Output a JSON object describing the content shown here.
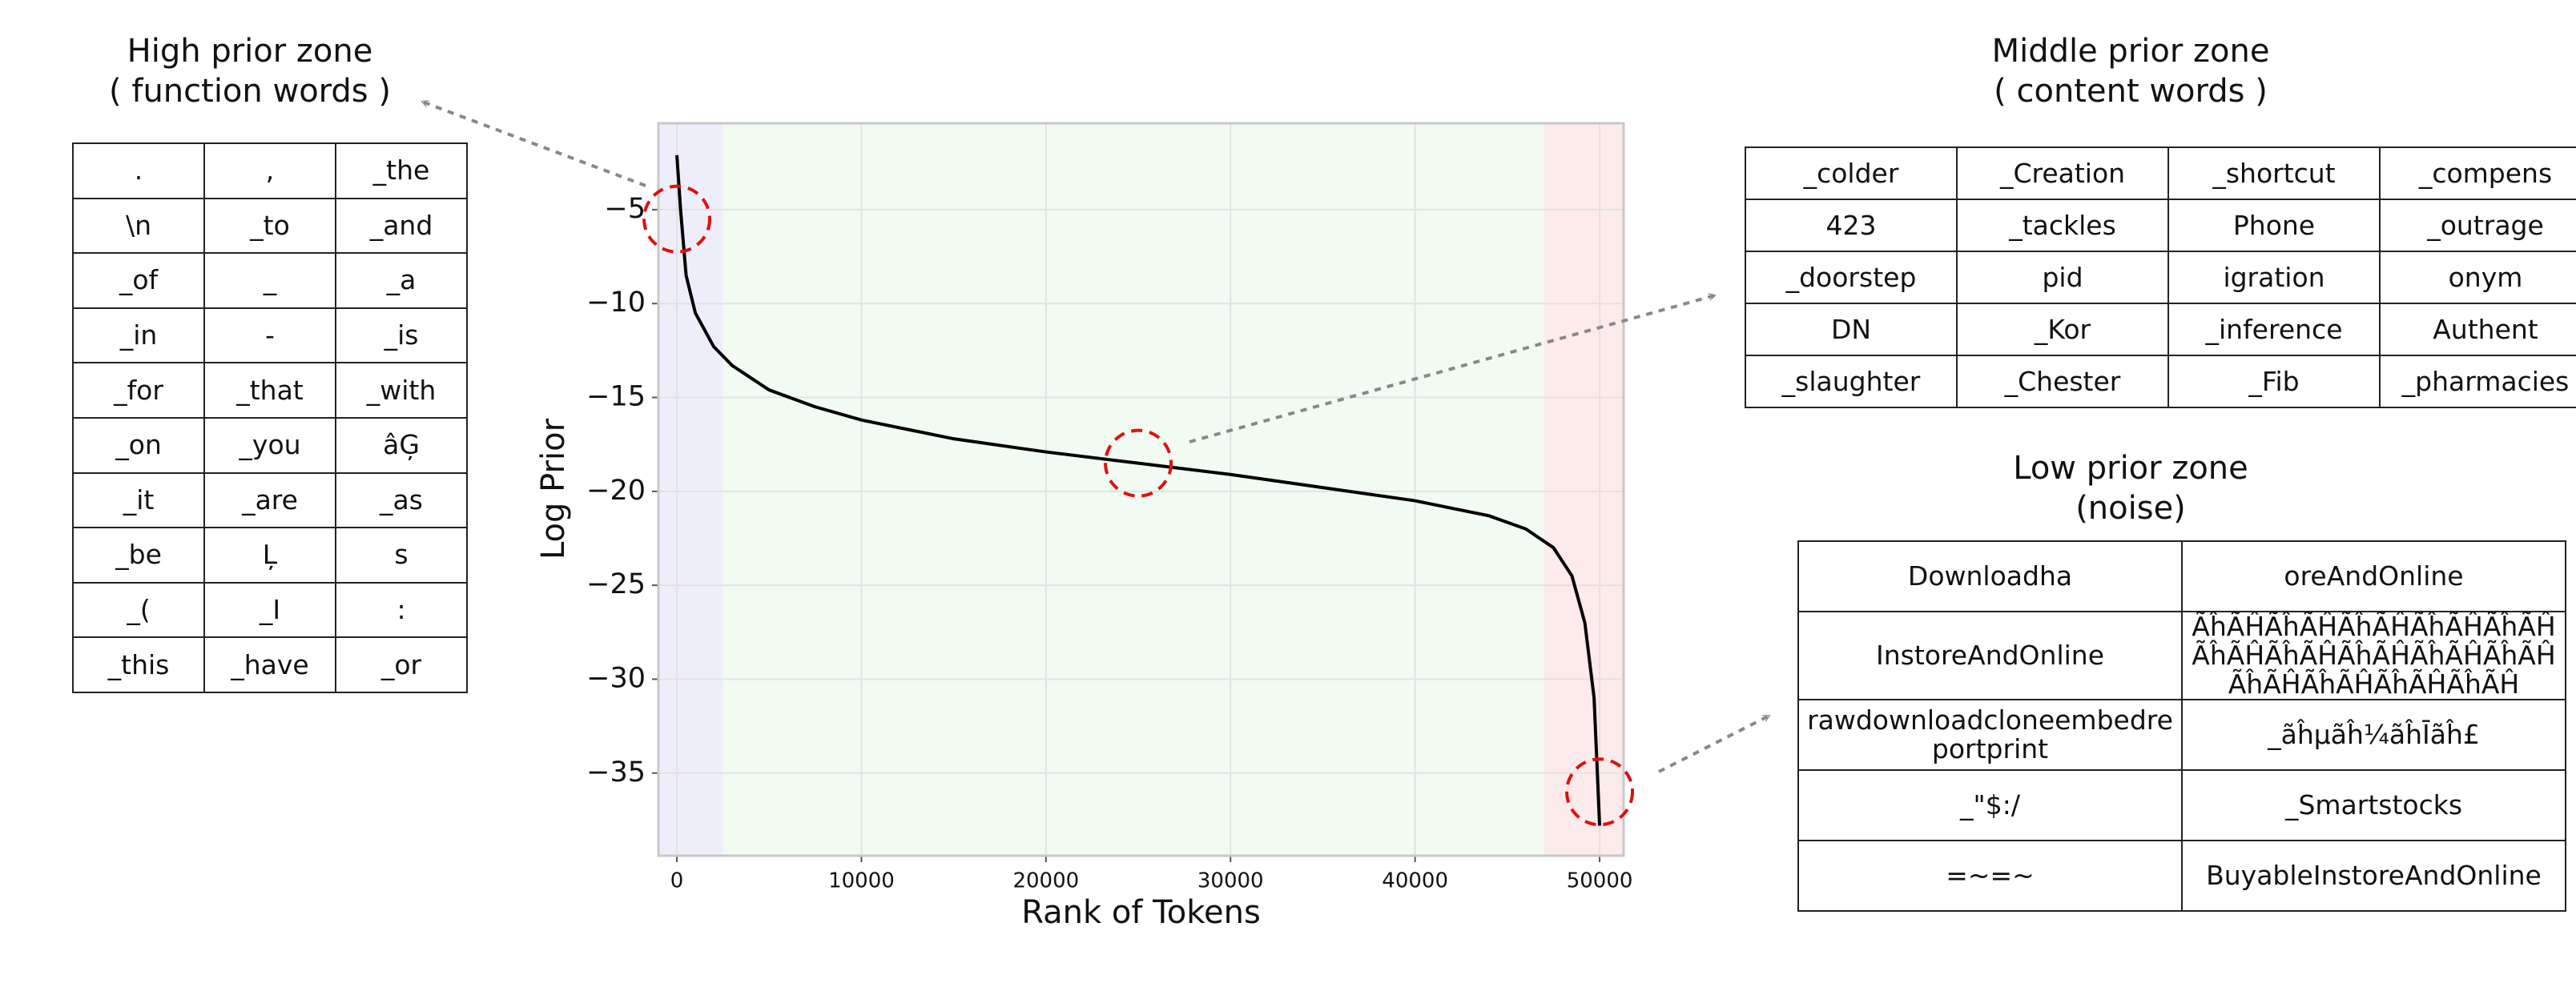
{
  "chart_data": {
    "type": "line",
    "xlabel": "Rank of Tokens",
    "ylabel": "Log Prior",
    "x": [
      0,
      200,
      500,
      1000,
      2000,
      3000,
      5000,
      7500,
      10000,
      15000,
      20000,
      25000,
      30000,
      35000,
      40000,
      44000,
      46000,
      47500,
      48500,
      49200,
      49700,
      50000
    ],
    "series": [
      {
        "color": "#000000",
        "values": [
          -2.1,
          -5,
          -8.5,
          -10.5,
          -12.3,
          -13.3,
          -14.6,
          -15.5,
          -16.2,
          -17.2,
          -17.9,
          -18.5,
          -19.1,
          -19.8,
          -20.5,
          -21.3,
          -22.0,
          -23.0,
          -24.5,
          -27,
          -31,
          -37.8
        ]
      }
    ],
    "xlim": [
      -1000,
      51300
    ],
    "ylim": [
      -39.4,
      -0.4
    ],
    "xticks": [
      0,
      10000,
      20000,
      30000,
      40000,
      50000
    ],
    "yticks": [
      {
        "value": -5,
        "label": "−5"
      },
      {
        "value": -10,
        "label": "−10"
      },
      {
        "value": -15,
        "label": "−15"
      },
      {
        "value": -20,
        "label": "−20"
      },
      {
        "value": -25,
        "label": "−25"
      },
      {
        "value": -30,
        "label": "−30"
      },
      {
        "value": -35,
        "label": "−35"
      }
    ],
    "grid": true,
    "zones": [
      {
        "xstart": -1000,
        "xend": 2500,
        "color": "#eeeefb"
      },
      {
        "xstart": 2500,
        "xend": 47000,
        "color": "#f1fbf1"
      },
      {
        "xstart": 47000,
        "xend": 51300,
        "color": "#fdeaea"
      }
    ],
    "highlights": [
      {
        "x": 0,
        "y": -5.5
      },
      {
        "x": 25000,
        "y": -18.5
      },
      {
        "x": 50000,
        "y": -36
      }
    ],
    "highlight_color": "#e01010"
  },
  "high_zone": {
    "title": [
      "High prior zone",
      "( function words )"
    ],
    "rows": [
      [
        ".",
        ",",
        "_the"
      ],
      [
        "\\n",
        "_to",
        "_and"
      ],
      [
        "_of",
        "_",
        "_a"
      ],
      [
        "_in",
        "-",
        "_is"
      ],
      [
        "_for",
        "_that",
        "_with"
      ],
      [
        "_on",
        "_you",
        "âĢ"
      ],
      [
        "_it",
        "_are",
        "_as"
      ],
      [
        "_be",
        "Ļ",
        "s"
      ],
      [
        "_(",
        "_I",
        ":"
      ],
      [
        "_this",
        "_have",
        "_or"
      ]
    ]
  },
  "middle_zone": {
    "title": [
      "Middle prior zone",
      "( content words )"
    ],
    "rows": [
      [
        "_colder",
        "_Creation",
        "_shortcut",
        "_compens"
      ],
      [
        "423",
        "_tackles",
        "Phone",
        "_outrage"
      ],
      [
        "_doorstep",
        "pid",
        "igration",
        "onym"
      ],
      [
        "DN",
        "_Kor",
        "_inference",
        "Authent"
      ],
      [
        "_slaughter",
        "_Chester",
        "_Fib",
        "_pharmacies"
      ]
    ]
  },
  "low_zone": {
    "title": [
      "Low prior zone",
      "(noise)"
    ],
    "rows": [
      [
        "Downloadha",
        "oreAndOnline"
      ],
      [
        "InstoreAndOnline",
        "ÃĥÃĤÃĥÃĤÃĥÃĤÃĥÃĤÃĥÃĤÃĥÃĤÃĥÃĤÃĥÃĤÃĥÃĤÃĥÃĤÃĥÃĤÃĥÃĤÃĥÃĤÃĥÃĤ"
      ],
      [
        "rawdownloadcloneembedreportprint",
        "_ãĥµãĥ¼ãĥĪãĥ£"
      ],
      [
        "_\"$:/",
        "_Smartstocks"
      ],
      [
        "=~=~",
        "BuyableInstoreAndOnline"
      ]
    ]
  }
}
